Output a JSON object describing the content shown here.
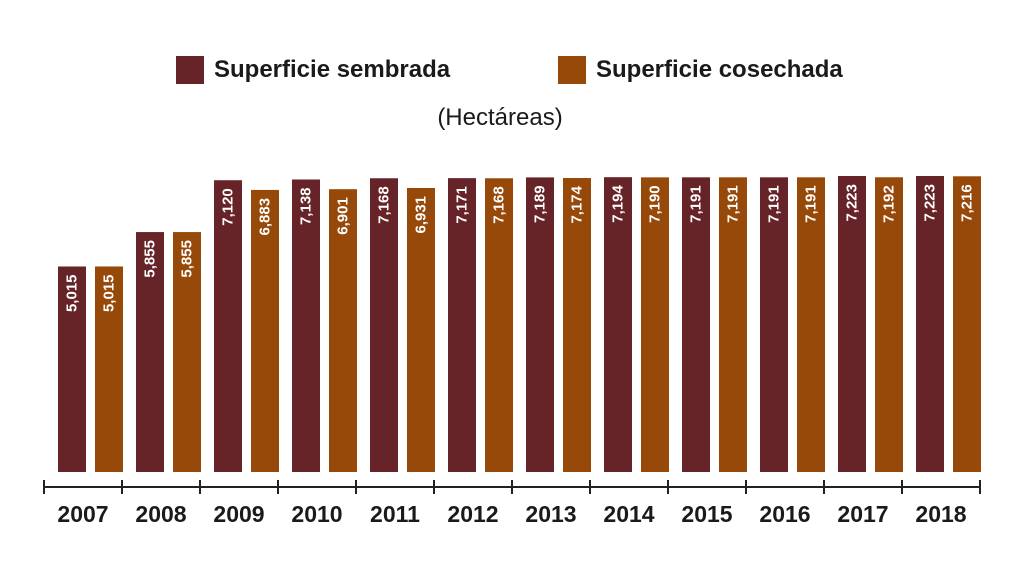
{
  "colors": {
    "sembrada": "#672428",
    "cosechada": "#97490a",
    "axis": "#222222",
    "label": "#ffffff"
  },
  "chart_data": {
    "type": "bar",
    "title": "",
    "unit_label": "(Hectáreas)",
    "xlabel": "",
    "ylabel": "",
    "ylim": [
      0,
      7500
    ],
    "grid": false,
    "legend_position": "top",
    "categories": [
      "2007",
      "2008",
      "2009",
      "2010",
      "2011",
      "2012",
      "2013",
      "2014",
      "2015",
      "2016",
      "2017",
      "2018"
    ],
    "series": [
      {
        "name": "Superficie sembrada",
        "values": [
          5015,
          5855,
          7120,
          7138,
          7168,
          7171,
          7189,
          7194,
          7191,
          7191,
          7223,
          7223
        ],
        "labels": [
          "5,015",
          "5,855",
          "7,120",
          "7,138",
          "7,168",
          "7,171",
          "7,189",
          "7,194",
          "7,191",
          "7,191",
          "7,223",
          "7,223"
        ]
      },
      {
        "name": "Superficie cosechada",
        "values": [
          5015,
          5855,
          6883,
          6901,
          6931,
          7168,
          7174,
          7190,
          7191,
          7191,
          7192,
          7216
        ],
        "labels": [
          "5,015",
          "5,855",
          "6,883",
          "6,901",
          "6,931",
          "7,168",
          "7,174",
          "7,190",
          "7,191",
          "7,191",
          "7,192",
          "7,216"
        ]
      }
    ]
  }
}
